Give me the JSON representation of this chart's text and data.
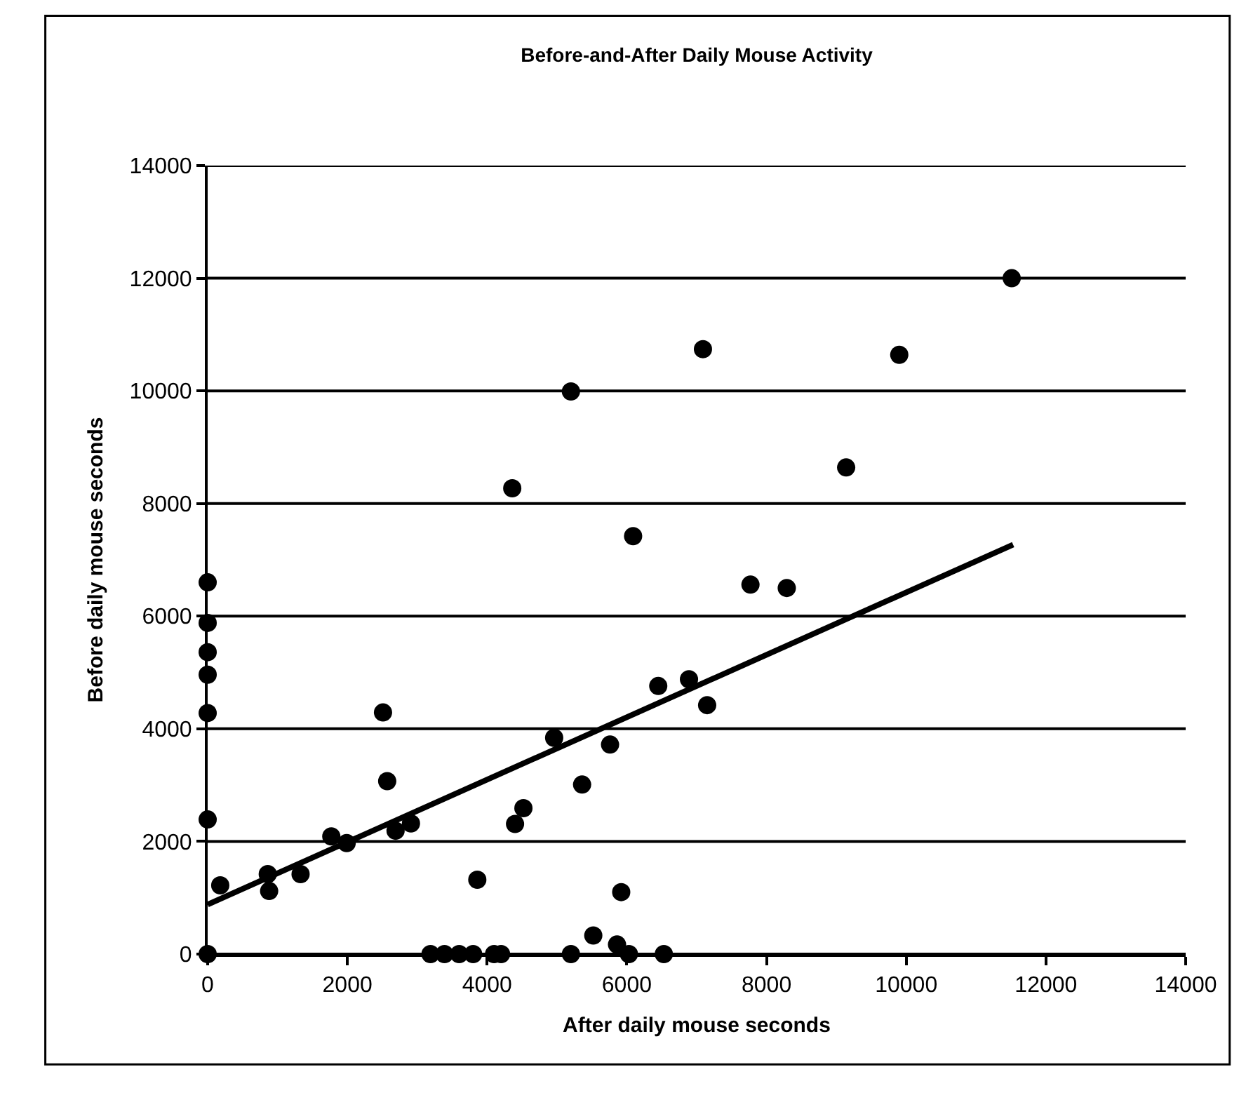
{
  "chart_data": {
    "type": "scatter",
    "title": "Before-and-After Daily Mouse Activity",
    "xlabel": "After daily mouse seconds",
    "ylabel": "Before daily mouse seconds",
    "xlim": [
      0,
      14000
    ],
    "xticks": [
      0,
      2000,
      4000,
      6000,
      8000,
      10000,
      12000,
      14000
    ],
    "ylim": [
      0,
      14000
    ],
    "yticks": [
      0,
      2000,
      4000,
      6000,
      8000,
      10000,
      12000,
      14000
    ],
    "grid": "y",
    "marker": "circle",
    "series": [
      {
        "color": "#000000",
        "x": [
          0,
          0,
          0,
          0,
          0,
          0,
          0,
          180,
          860,
          880,
          1330,
          1770,
          1990,
          2510,
          2570,
          2690,
          2910,
          3860,
          4400,
          4520,
          3190,
          3390,
          3600,
          3800,
          4100,
          4200,
          4960,
          5360,
          5760,
          5200,
          5520,
          5920,
          5860,
          6030,
          6530,
          6450,
          6890,
          7150,
          7770,
          8290,
          11510,
          7090,
          9900,
          5200,
          9140,
          4360,
          6090
        ],
        "values": [
          6600,
          5880,
          5360,
          4960,
          4280,
          2390,
          0,
          1220,
          1420,
          1120,
          1420,
          2090,
          1970,
          4290,
          3070,
          2190,
          2320,
          1320,
          2310,
          2590,
          0,
          0,
          0,
          0,
          0,
          0,
          3840,
          3010,
          3720,
          0,
          330,
          1100,
          170,
          0,
          0,
          4760,
          4880,
          4420,
          6560,
          6500,
          12000,
          10740,
          10640,
          9990,
          8640,
          8270,
          7420
        ]
      },
      {
        "type": "line",
        "color": "#000000",
        "marker": "none",
        "line_style": "solid",
        "x": [
          0,
          11530
        ],
        "values": [
          880,
          7270
        ]
      }
    ]
  }
}
